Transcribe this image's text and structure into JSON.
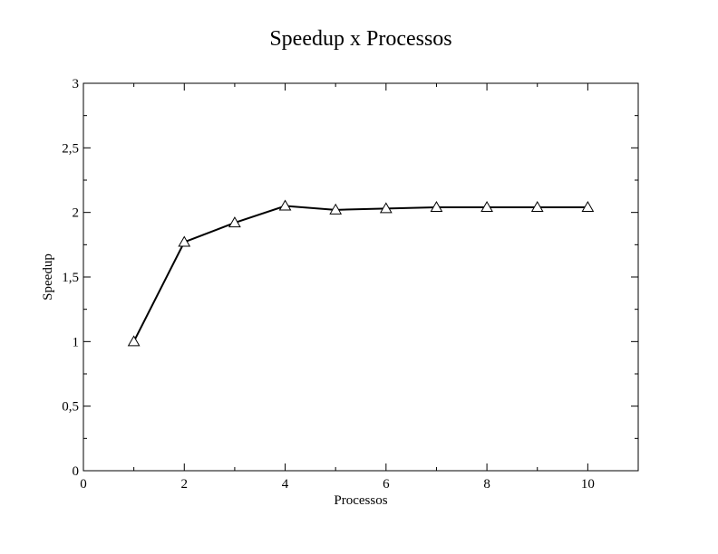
{
  "chart_data": {
    "type": "line",
    "title": "Speedup x Processos",
    "xlabel": "Processos",
    "ylabel": "Speedup",
    "xlim": [
      0,
      11
    ],
    "ylim": [
      0,
      3
    ],
    "x_ticks": [
      0,
      2,
      4,
      6,
      8,
      10
    ],
    "x_tick_labels": [
      "0",
      "2",
      "4",
      "6",
      "8",
      "10"
    ],
    "y_ticks": [
      0,
      0.5,
      1,
      1.5,
      2,
      2.5,
      3
    ],
    "y_tick_labels": [
      "0",
      "0,5",
      "1",
      "1,5",
      "2",
      "2,5",
      "3"
    ],
    "grid": false,
    "legend": "none",
    "marker": "triangle-open",
    "line_color": "#000000",
    "series": [
      {
        "x": [
          1,
          2,
          3,
          4,
          5,
          6,
          7,
          8,
          9,
          10
        ],
        "values": [
          1.0,
          1.77,
          1.92,
          2.05,
          2.02,
          2.03,
          2.04,
          2.04,
          2.04,
          2.04
        ]
      }
    ]
  }
}
